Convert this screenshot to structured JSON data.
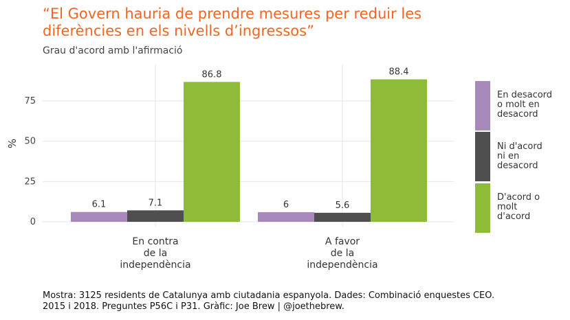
{
  "title": "“El Govern hauria de prendre mesures per reduir les\ndiferències en els nivells d’ingressos”",
  "subtitle": "Grau d'acord amb l'afirmació",
  "caption": "Mostra: 3125 residents de Catalunya amb ciutadania espanyola. Dades: Combinació enquestes CEO.\n2015 i 2018. Preguntes P56C i P31. Gràfic: Joe Brew | @joethebrew.",
  "colors": {
    "title": "#f26522",
    "grid": "#e6e6e6"
  },
  "chart_data": {
    "type": "bar",
    "categories": [
      "En contra\nde la\nindependència",
      "A favor\nde la\nindependència"
    ],
    "series": [
      {
        "name": "En desacord\no molt en\ndesacord",
        "color": "#a889bb",
        "values": [
          6.1,
          6
        ]
      },
      {
        "name": "Ni d'acord\nni en\ndesacord",
        "color": "#4f4f4f",
        "values": [
          7.1,
          5.6
        ]
      },
      {
        "name": "D'acord o\nmolt\nd'acord",
        "color": "#8ebc38",
        "values": [
          86.8,
          88.4
        ]
      }
    ],
    "ylabel": "%",
    "yticks": [
      0,
      25,
      50,
      75
    ],
    "ylim": [
      0,
      96
    ],
    "legend_position": "right",
    "grid": true
  }
}
